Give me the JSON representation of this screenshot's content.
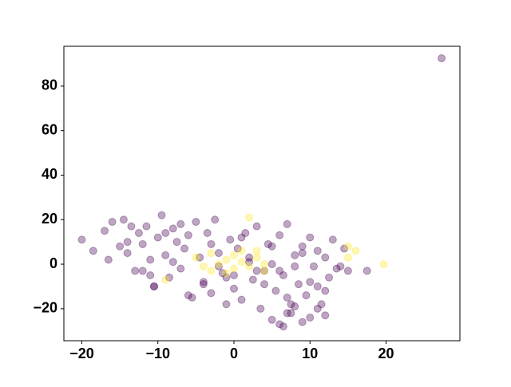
{
  "chart_data": {
    "type": "scatter",
    "series": [
      {
        "color": "#440154",
        "x": [
          -20,
          -18.5,
          -17,
          -16,
          -15,
          -14.5,
          -14,
          -13,
          -12.5,
          -12,
          -11.5,
          -11,
          -10.5,
          -10,
          -9.5,
          -9,
          -8.5,
          -8,
          -7.5,
          -7,
          -6.5,
          -6,
          -5.5,
          -5,
          -4.5,
          -4,
          -3.5,
          -3,
          -2.5,
          -2,
          -1.5,
          -1,
          -0.5,
          0,
          0.5,
          1,
          1.5,
          2,
          2.5,
          3,
          3.5,
          4,
          4.5,
          5,
          5.5,
          6,
          6.5,
          7,
          7.5,
          8,
          8.5,
          9,
          9.5,
          10,
          10.5,
          11,
          11.5,
          12,
          12.5,
          13,
          13.5,
          14,
          14.5,
          15,
          -16.5,
          -13.5,
          -11,
          -8,
          -6,
          -3,
          -1,
          1,
          3,
          5,
          7,
          9,
          11,
          -14,
          -12,
          -9,
          -7,
          -4,
          -2,
          0,
          2,
          4,
          6,
          8,
          10,
          12,
          5,
          6,
          7,
          8,
          9,
          10,
          11,
          12,
          6.5,
          7.5,
          -10.5,
          17.5,
          27.3
        ],
        "values": [
          11,
          6,
          15,
          19,
          8,
          20,
          5,
          -3,
          14,
          9,
          17,
          2,
          -10,
          12,
          22,
          4,
          -6,
          16,
          10,
          -2,
          7,
          13,
          -15,
          19,
          3,
          -8,
          14,
          -13,
          20,
          5,
          -4,
          -18,
          11,
          -11,
          7,
          -16,
          14,
          1,
          -7,
          17,
          -20,
          -3,
          9,
          0,
          -12,
          13,
          -5,
          18,
          -22,
          4,
          -9,
          8,
          -14,
          12,
          -1,
          6,
          -18,
          3,
          -6,
          11,
          -2,
          -1,
          7,
          -3,
          2,
          17,
          -5,
          1,
          -14,
          9,
          -6,
          12,
          -3,
          8,
          -15,
          5,
          -10,
          10,
          -3,
          14,
          18,
          -9,
          -1,
          -5,
          3,
          -9,
          -3,
          -1,
          -8,
          -12,
          -25,
          -27,
          -22,
          -19,
          -26,
          -24,
          -20,
          -23,
          -28,
          -18,
          -10,
          -3,
          92.5
        ]
      },
      {
        "color": "#fde725",
        "x": [
          -5,
          -4,
          -3,
          -2,
          -1,
          0,
          0,
          1,
          2,
          3,
          4,
          -3,
          1,
          2,
          15,
          16,
          19.7,
          -9,
          15,
          -1,
          3,
          4
        ],
        "values": [
          3,
          -1,
          5,
          0,
          2,
          -2,
          4,
          1,
          -1,
          3,
          0,
          -3,
          6,
          21,
          8,
          6,
          0,
          -7,
          3,
          -4,
          6,
          -3
        ]
      }
    ],
    "xlim": [
      -22.36,
      29.71
    ],
    "ylim": [
      -34.4,
      97.9
    ],
    "xticks": [
      {
        "value": -20,
        "label": "−20"
      },
      {
        "value": -10,
        "label": "−10"
      },
      0,
      10,
      20
    ],
    "yticks": [
      {
        "value": -20,
        "label": "−20"
      },
      0,
      20,
      40,
      60,
      80
    ],
    "grid": false
  }
}
